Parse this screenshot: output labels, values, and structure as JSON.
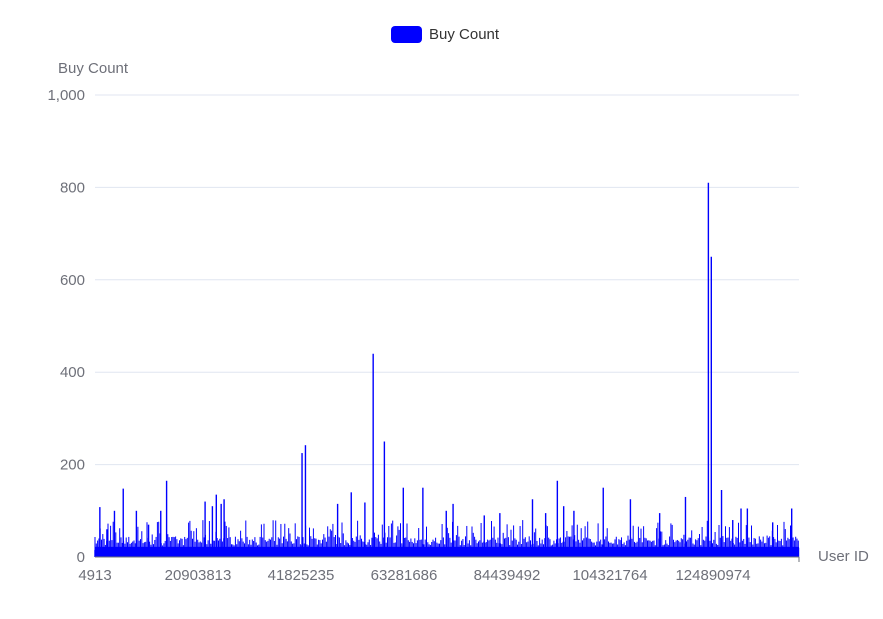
{
  "chart_data": {
    "type": "bar",
    "title": "",
    "legend": {
      "label": "Buy Count",
      "color": "#0000ff",
      "position": "top-center"
    },
    "xlabel": "User ID",
    "ylabel": "Buy Count",
    "ylim": [
      0,
      1000
    ],
    "y_ticks": [
      0,
      200,
      400,
      600,
      800,
      1000
    ],
    "y_tick_labels": [
      "0",
      "200",
      "400",
      "600",
      "800",
      "1,000"
    ],
    "x_tick_labels": [
      "4913",
      "20903813",
      "41825235",
      "63281686",
      "84439492",
      "104321764",
      "124890974"
    ],
    "grid": true,
    "bar_color": "#0000ff",
    "series": [
      {
        "name": "Buy Count",
        "x": [
          4913,
          1000000,
          2450000,
          4000000,
          5800000,
          8500000,
          11000000,
          13500000,
          14700000,
          20903813,
          22600000,
          24100000,
          24900000,
          25900000,
          26500000,
          41000000,
          42500000,
          43200000,
          49800000,
          52600000,
          55400000,
          57100000,
          59400000,
          63281686,
          67300000,
          72100000,
          73500000,
          79900000,
          83100000,
          84439492,
          89800000,
          92500000,
          94900000,
          96200000,
          98300000,
          104321764,
          109900000,
          115900000,
          121200000,
          124890974,
          125900000,
          126500000,
          128600000,
          130900000,
          132600000,
          133900000,
          139100000,
          143000000,
          144400000
        ],
        "values": [
          15,
          108,
          60,
          100,
          148,
          100,
          70,
          100,
          165,
          20,
          120,
          110,
          135,
          115,
          125,
          20,
          225,
          242,
          115,
          140,
          118,
          440,
          250,
          150,
          150,
          100,
          115,
          90,
          95,
          20,
          125,
          95,
          165,
          110,
          100,
          150,
          125,
          95,
          130,
          20,
          810,
          650,
          145,
          80,
          105,
          105,
          75,
          105,
          20
        ]
      }
    ]
  }
}
